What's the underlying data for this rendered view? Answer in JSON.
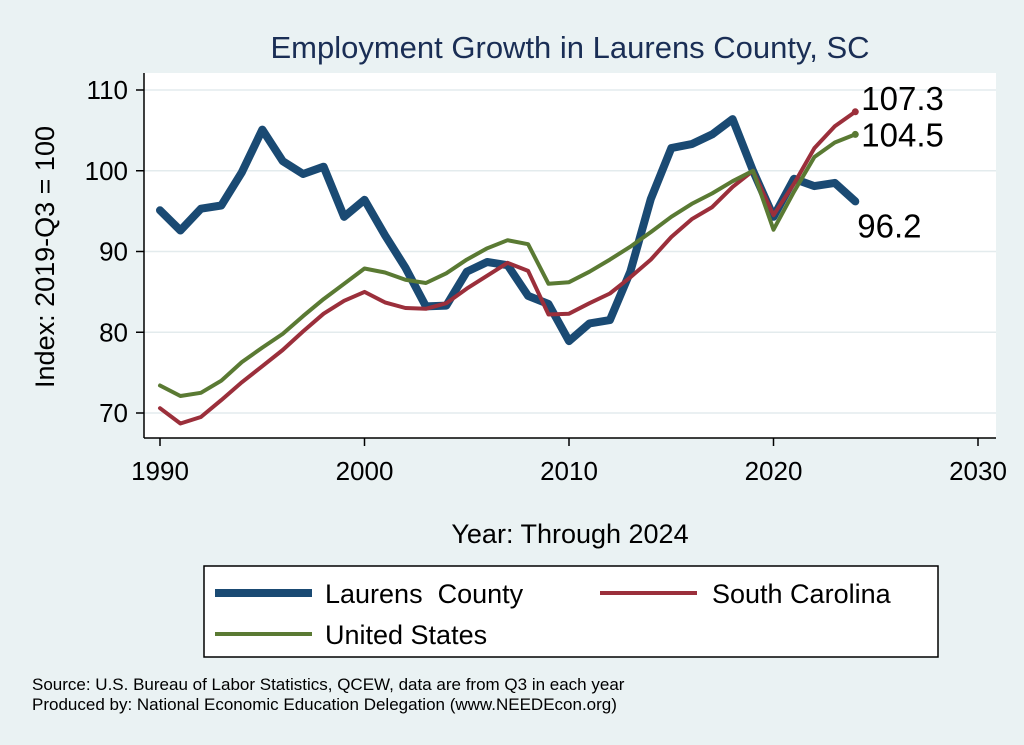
{
  "chart_data": {
    "type": "line",
    "title": "Employment Growth in Laurens County, SC",
    "xlabel": "Year: Through 2024",
    "ylabel": "Index: 2019-Q3 = 100",
    "xlim": [
      1990,
      2030
    ],
    "ylim": [
      67,
      111
    ],
    "xticks": [
      1990,
      2000,
      2010,
      2020,
      2030
    ],
    "yticks": [
      70,
      80,
      90,
      100,
      110
    ],
    "grid": "horizontal",
    "legend_position": "bottom",
    "x": [
      1990,
      1991,
      1992,
      1993,
      1994,
      1995,
      1996,
      1997,
      1998,
      1999,
      2000,
      2001,
      2002,
      2003,
      2004,
      2005,
      2006,
      2007,
      2008,
      2009,
      2010,
      2011,
      2012,
      2013,
      2014,
      2015,
      2016,
      2017,
      2018,
      2019,
      2020,
      2021,
      2022,
      2023,
      2024
    ],
    "series": [
      {
        "name": "Laurens  County",
        "color": "#1a4a73",
        "width": 8,
        "end_label": "96.2",
        "values": [
          95.1,
          92.6,
          95.3,
          95.7,
          99.8,
          105.1,
          101.2,
          99.6,
          100.5,
          94.3,
          96.4,
          92.0,
          88.0,
          83.2,
          83.3,
          87.5,
          88.7,
          88.3,
          84.5,
          83.5,
          78.9,
          81.1,
          81.5,
          87.5,
          96.5,
          102.8,
          103.3,
          104.5,
          106.4,
          100.0,
          94.3,
          99.0,
          98.1,
          98.5,
          96.2
        ]
      },
      {
        "name": "South Carolina",
        "color": "#9b2f3b",
        "width": 4,
        "end_label": "107.3",
        "values": [
          70.6,
          68.7,
          69.5,
          71.6,
          73.8,
          75.8,
          77.8,
          80.1,
          82.3,
          83.9,
          85.0,
          83.7,
          83.0,
          82.9,
          83.6,
          85.4,
          87.0,
          88.6,
          87.6,
          82.2,
          82.3,
          83.6,
          84.8,
          86.8,
          89.0,
          91.8,
          94.0,
          95.5,
          98.0,
          100.0,
          94.5,
          98.4,
          102.8,
          105.5,
          107.3
        ]
      },
      {
        "name": "United States",
        "color": "#5a7a33",
        "width": 4,
        "end_label": "104.5",
        "values": [
          73.4,
          72.1,
          72.5,
          74.0,
          76.3,
          78.1,
          79.8,
          82.0,
          84.1,
          86.0,
          87.9,
          87.4,
          86.5,
          86.1,
          87.3,
          89.0,
          90.4,
          91.4,
          90.9,
          86.0,
          86.2,
          87.5,
          89.0,
          90.6,
          92.4,
          94.3,
          95.9,
          97.2,
          98.7,
          100.0,
          92.7,
          97.4,
          101.7,
          103.5,
          104.5
        ]
      }
    ]
  },
  "footer": {
    "source": "Source: U.S. Bureau of Labor Statistics, QCEW, data are from Q3 in each year",
    "produced": "Produced by: National Economic Education Delegation (www.NEEDEcon.org)"
  }
}
